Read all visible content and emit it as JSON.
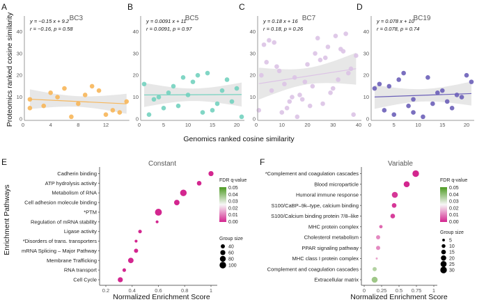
{
  "axis_labels": {
    "scatter_y": "Proteomics ranked cosine similarity",
    "scatter_x": "Genomics ranked cosine similarity",
    "enrich_y": "Enrichment Pathways",
    "enrich_x": "Normalized Enrichment Score"
  },
  "chart_data": [
    {
      "type": "scatter",
      "letter": "A",
      "title": "BC3",
      "color": "#f7b659",
      "eq1": "y = −0.15 x + 9.2",
      "eq2": "r = −0.16, p = 0.58",
      "slope": -0.15,
      "intercept": 9.2,
      "xlim": [
        0,
        15
      ],
      "xticks": [
        0,
        4,
        8,
        12
      ],
      "ylim": [
        0,
        45
      ],
      "yticks": [
        0,
        10,
        20,
        30,
        40
      ],
      "x": [
        1,
        1,
        3,
        4,
        5,
        6,
        7,
        8,
        9,
        10,
        11,
        12,
        13,
        14,
        15
      ],
      "y": [
        9,
        5,
        6,
        12,
        10,
        14,
        1,
        7,
        11,
        15,
        13,
        2,
        4,
        3,
        8
      ]
    },
    {
      "type": "scatter",
      "letter": "B",
      "title": "BC5",
      "color": "#73d2bf",
      "eq1": "y = 0.0091 x + 11",
      "eq2": "r = 0.0091, p = 0.97",
      "slope": 0.0091,
      "intercept": 11,
      "xlim": [
        0,
        21
      ],
      "xticks": [
        0,
        5,
        10,
        15,
        20
      ],
      "ylim": [
        0,
        45
      ],
      "yticks": [
        0,
        10,
        20,
        30,
        40
      ],
      "x": [
        1,
        2,
        3,
        4,
        5,
        6,
        7,
        8,
        9,
        10,
        11,
        12,
        13,
        14,
        15,
        16,
        17,
        18,
        19,
        20,
        21
      ],
      "y": [
        16,
        2,
        9,
        10,
        5,
        12,
        15,
        6,
        19,
        11,
        17,
        20,
        3,
        21,
        4,
        7,
        13,
        18,
        8,
        14,
        1
      ]
    },
    {
      "type": "scatter",
      "letter": "C",
      "title": "BC7",
      "color": "#dcc3e6",
      "eq1": "y = 0.18 x + 16",
      "eq2": "r = 0.18, p = 0.26",
      "slope": 0.18,
      "intercept": 16,
      "xlim": [
        0,
        40
      ],
      "xticks": [
        0,
        10,
        20,
        30,
        40
      ],
      "ylim": [
        0,
        45
      ],
      "yticks": [
        0,
        10,
        20,
        30,
        40
      ],
      "x": [
        1,
        2,
        3,
        4,
        5,
        6,
        7,
        8,
        9,
        10,
        11,
        12,
        13,
        14,
        15,
        16,
        17,
        18,
        19,
        20,
        21,
        22,
        23,
        24,
        25,
        26,
        27,
        28,
        29,
        30,
        31,
        32,
        33,
        34,
        35,
        36,
        37,
        38,
        39
      ],
      "y": [
        4,
        20,
        34,
        26,
        36,
        13,
        35,
        24,
        22,
        3,
        16,
        5,
        8,
        10,
        19,
        1,
        11,
        9,
        17,
        25,
        6,
        15,
        30,
        37,
        27,
        7,
        28,
        33,
        12,
        14,
        38,
        18,
        32,
        31,
        39,
        21,
        23,
        2,
        29
      ]
    },
    {
      "type": "scatter",
      "letter": "D",
      "title": "BC19",
      "color": "#6b5fb8",
      "eq1": "y = 0.078 x + 10",
      "eq2": "r = 0.078, p = 0.74",
      "slope": 0.078,
      "intercept": 10,
      "xlim": [
        0,
        21
      ],
      "xticks": [
        0,
        5,
        10,
        15,
        20
      ],
      "ylim": [
        0,
        45
      ],
      "yticks": [
        0,
        10,
        20,
        30,
        40
      ],
      "x": [
        1,
        2,
        3,
        4,
        5,
        6,
        7,
        8,
        9,
        9,
        11,
        12,
        13,
        14,
        15,
        16,
        17,
        18,
        19,
        20,
        21
      ],
      "y": [
        14,
        16,
        4,
        15,
        2,
        18,
        21,
        6,
        9,
        3,
        1,
        19,
        7,
        12,
        13,
        8,
        5,
        11,
        10,
        20,
        17
      ]
    },
    {
      "type": "scatter",
      "letter": "E",
      "title": "Constant",
      "xlim": [
        0.15,
        1.05
      ],
      "xticks": [
        0.2,
        0.4,
        0.6,
        0.8,
        1
      ],
      "xticklabels": [
        "0.2",
        "0.4",
        "0.6",
        "0.8",
        "1"
      ],
      "pathways": [
        "Cadherin binding",
        "ATP hydrolysis activity",
        "Metabolism of RNA",
        "Cell adhesion molecule binding",
        "*PTM",
        "Regulation of mRNA stability",
        "Ligase activity",
        "*Disorders of trans. transporters",
        "mRNA Splicing – Major Pathway",
        "Membrane Trafficking",
        "RNA transport",
        "Cell Cycle"
      ],
      "nes": [
        1.0,
        0.91,
        0.79,
        0.74,
        0.6,
        0.59,
        0.46,
        0.43,
        0.43,
        0.39,
        0.34,
        0.31
      ],
      "group_size": [
        60,
        50,
        100,
        70,
        110,
        20,
        30,
        20,
        40,
        70,
        30,
        60
      ],
      "fdr": [
        0,
        0,
        0,
        0,
        0,
        0,
        0,
        0,
        0,
        0,
        0,
        0
      ],
      "fdr_legend": {
        "title": "FDR q-value",
        "ticks": [
          "0.05",
          "0.04",
          "0.03",
          "0.02",
          "0.01",
          "0.00"
        ]
      },
      "size_legend": {
        "title": "Group size",
        "values": [
          40,
          60,
          80,
          100
        ]
      }
    },
    {
      "type": "scatter",
      "letter": "F",
      "title": "Variable",
      "xlim": [
        -0.03,
        1.05
      ],
      "xticks": [
        0,
        0.25,
        0.5,
        0.75,
        1
      ],
      "xticklabels": [
        "0",
        "0.25",
        "0.5",
        "0.75",
        "1"
      ],
      "pathways": [
        "*Complement and coagulation cascades",
        "Blood microparticle",
        "Humoral immune response",
        "S100/CaBP–9k–type, calcium binding",
        "S100/Calcium binding protein 7/8–like",
        "MHC protein complex",
        "Cholesterol metabolism",
        "PPAR signaling pathway",
        "MHC class I protein complex",
        "Complement and coagulation cascades",
        "Extracellular matrix"
      ],
      "nes": [
        0.74,
        0.61,
        0.44,
        0.43,
        0.41,
        0.24,
        0.2,
        0.2,
        0.18,
        0.15,
        0.15
      ],
      "group_size": [
        30,
        25,
        25,
        15,
        15,
        8,
        12,
        12,
        3,
        12,
        25
      ],
      "fdr": [
        0,
        0,
        0.002,
        0.002,
        0.003,
        0.008,
        0.012,
        0.012,
        0.015,
        0.035,
        0.038
      ],
      "fdr_legend": {
        "title": "FDR q-value",
        "ticks": [
          "0.05",
          "0.04",
          "0.03",
          "0.02",
          "0.01",
          "0.00"
        ]
      },
      "size_legend": {
        "title": "Group size",
        "values": [
          5,
          10,
          15,
          20,
          25,
          30
        ]
      }
    }
  ],
  "colors": {
    "fdr_low": "#d3268f",
    "fdr_mid": "#f7f7f7",
    "fdr_high": "#4d9a22",
    "ci_band": "#e3e3e3",
    "axis": "#999999"
  }
}
